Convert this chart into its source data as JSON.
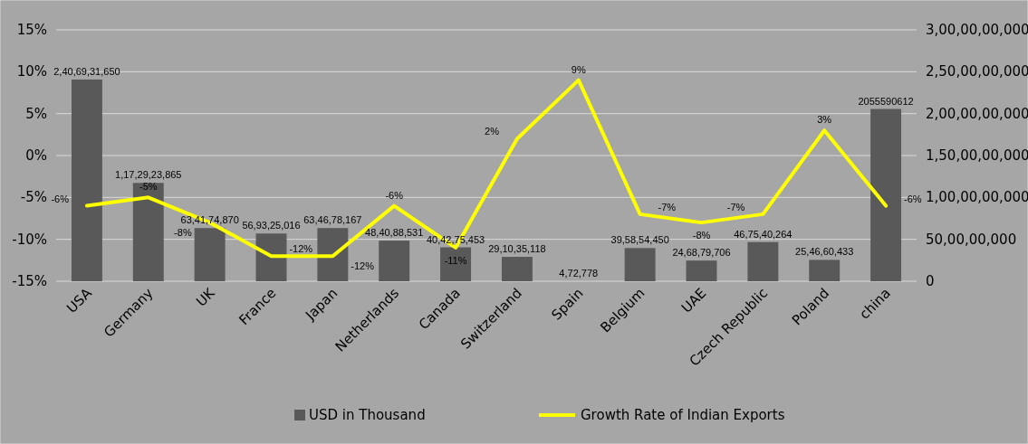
{
  "chart_data": {
    "type": "bar",
    "categories": [
      "USA",
      "Germany",
      "UK",
      "France",
      "Japan",
      "Netherlands",
      "Canada",
      "Switzerland",
      "Spain",
      "Belgium",
      "UAE",
      "Czech Republic",
      "Poland",
      "china"
    ],
    "series": [
      {
        "name": "USD in Thousand",
        "axis": "y2",
        "color": "#595959",
        "values": [
          2406931650,
          1172923865,
          634174870,
          569325016,
          634678167,
          484088531,
          404275453,
          291035118,
          472778,
          395854450,
          246879706,
          467540264,
          254660433,
          2055590612
        ],
        "value_labels": [
          "2,40,69,31,650",
          "1,17,29,23,865",
          "63,41,74,870",
          "56,93,25,016",
          "63,46,78,167",
          "48,40,88,531",
          "40,42,75,453",
          "29,10,35,118",
          "4,72,778",
          "39,58,54,450",
          "24,68,79,706",
          "46,75,40,264",
          "25,46,60,433",
          "2055590612"
        ]
      },
      {
        "name": "Growth Rate of Indian Exports",
        "type": "line",
        "color": "#ffff00",
        "values": [
          -6,
          -5,
          -8,
          -12,
          -12,
          -6,
          -11,
          2,
          9,
          -7,
          -8,
          -7,
          3,
          -6
        ],
        "value_labels": [
          "-6%",
          "-5%",
          "-8%",
          "-12%",
          "-12%",
          "-6%",
          "-11%",
          "2%",
          "9%",
          "-7%",
          "-8%",
          "-7%",
          "3%",
          "-6%"
        ]
      }
    ],
    "ylim": [
      -15,
      15
    ],
    "yticks": [
      {
        "value": -15,
        "label": "-15%"
      },
      {
        "value": -10,
        "label": "-10%"
      },
      {
        "value": -5,
        "label": "-5%"
      },
      {
        "value": 0,
        "label": "0%"
      },
      {
        "value": 5,
        "label": "5%"
      },
      {
        "value": 10,
        "label": "10%"
      },
      {
        "value": 15,
        "label": "15%"
      }
    ],
    "y2lim": [
      0,
      3000000000
    ],
    "y2ticks": [
      0,
      {
        "value": 500000000,
        "label": "50,00,00,000"
      },
      {
        "value": 1000000000,
        "label": "1,00,00,00,000"
      },
      {
        "value": 1500000000,
        "label": "1,50,00,00,000"
      },
      {
        "value": 2000000000,
        "label": "2,00,00,00,000"
      },
      {
        "value": 2500000000,
        "label": "2,50,00,00,000"
      },
      {
        "value": 3000000000,
        "label": "3,00,00,00,000"
      }
    ],
    "grid": "y",
    "legend": "bottom",
    "marker": "none",
    "line_style": "solid"
  }
}
